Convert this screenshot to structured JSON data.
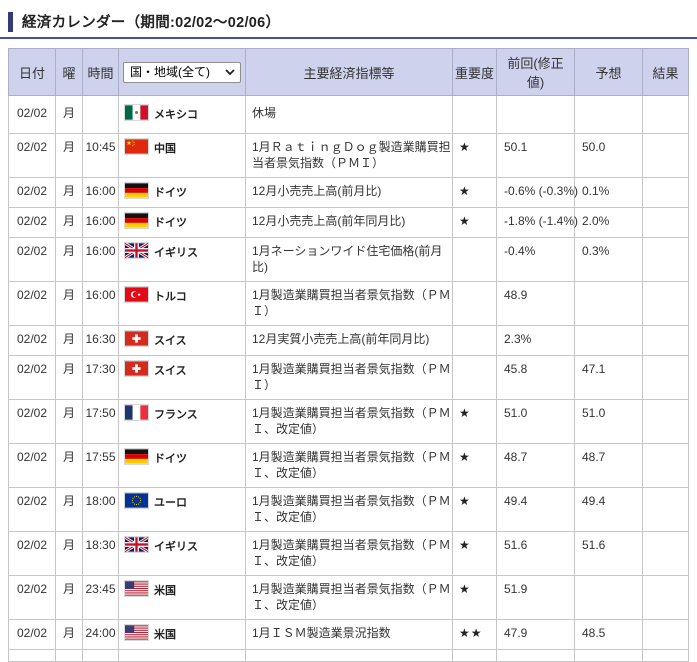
{
  "page": {
    "title": "経済カレンダー（期間:02/02～02/06）"
  },
  "colors": {
    "accent_bar": "#333c78",
    "title_underline": "#45519e",
    "header_bg": "#ced2ec"
  },
  "table": {
    "region_filter": {
      "selected": "国・地域(全て)"
    },
    "headers": {
      "date": "日付",
      "day": "曜",
      "time": "時間",
      "indicator": "主要経済指標等",
      "importance": "重要度",
      "previous": "前回(修正値)",
      "forecast": "予想",
      "result": "結果"
    },
    "rows": [
      {
        "date": "02/02",
        "day": "月",
        "time": "",
        "country": "メキシコ",
        "flag": "mexico",
        "indicator": "休場",
        "importance": "",
        "previous": "",
        "forecast": "",
        "result": ""
      },
      {
        "date": "02/02",
        "day": "月",
        "time": "10:45",
        "country": "中国",
        "flag": "china",
        "indicator": "1月ＲａｔｉｎｇＤｏｇ製造業購買担\n当者景気指数（ＰＭＩ）",
        "importance": "★",
        "previous": "50.1",
        "forecast": "50.0",
        "result": ""
      },
      {
        "date": "02/02",
        "day": "月",
        "time": "16:00",
        "country": "ドイツ",
        "flag": "germany",
        "indicator": "12月小売売上高(前月比)",
        "importance": "★",
        "previous": "-0.6% (-0.3%)",
        "forecast": "0.1%",
        "result": ""
      },
      {
        "date": "02/02",
        "day": "月",
        "time": "16:00",
        "country": "ドイツ",
        "flag": "germany",
        "indicator": "12月小売売上高(前年同月比)",
        "importance": "★",
        "previous": "-1.8% (-1.4%)",
        "forecast": "2.0%",
        "result": ""
      },
      {
        "date": "02/02",
        "day": "月",
        "time": "16:00",
        "country": "イギリス",
        "flag": "uk",
        "indicator": "1月ネーションワイド住宅価格(前月\n比)",
        "importance": "",
        "previous": "-0.4%",
        "forecast": "0.3%",
        "result": ""
      },
      {
        "date": "02/02",
        "day": "月",
        "time": "16:00",
        "country": "トルコ",
        "flag": "turkey",
        "indicator": "1月製造業購買担当者景気指数（ＰＭ\nＩ）",
        "importance": "",
        "previous": "48.9",
        "forecast": "",
        "result": ""
      },
      {
        "date": "02/02",
        "day": "月",
        "time": "16:30",
        "country": "スイス",
        "flag": "switzerland",
        "indicator": "12月実質小売売上高(前年同月比)",
        "importance": "",
        "previous": "2.3%",
        "forecast": "",
        "result": ""
      },
      {
        "date": "02/02",
        "day": "月",
        "time": "17:30",
        "country": "スイス",
        "flag": "switzerland",
        "indicator": "1月製造業購買担当者景気指数（ＰＭ\nＩ）",
        "importance": "",
        "previous": "45.8",
        "forecast": "47.1",
        "result": ""
      },
      {
        "date": "02/02",
        "day": "月",
        "time": "17:50",
        "country": "フランス",
        "flag": "france",
        "indicator": "1月製造業購買担当者景気指数（ＰＭ\nＩ、改定値）",
        "importance": "★",
        "previous": "51.0",
        "forecast": "51.0",
        "result": ""
      },
      {
        "date": "02/02",
        "day": "月",
        "time": "17:55",
        "country": "ドイツ",
        "flag": "germany",
        "indicator": "1月製造業購買担当者景気指数（ＰＭ\nＩ、改定値）",
        "importance": "★",
        "previous": "48.7",
        "forecast": "48.7",
        "result": ""
      },
      {
        "date": "02/02",
        "day": "月",
        "time": "18:00",
        "country": "ユーロ",
        "flag": "eu",
        "indicator": "1月製造業購買担当者景気指数（ＰＭ\nＩ、改定値）",
        "importance": "★",
        "previous": "49.4",
        "forecast": "49.4",
        "result": ""
      },
      {
        "date": "02/02",
        "day": "月",
        "time": "18:30",
        "country": "イギリス",
        "flag": "uk",
        "indicator": "1月製造業購買担当者景気指数（ＰＭ\nＩ、改定値）",
        "importance": "★",
        "previous": "51.6",
        "forecast": "51.6",
        "result": ""
      },
      {
        "date": "02/02",
        "day": "月",
        "time": "23:45",
        "country": "米国",
        "flag": "usa",
        "indicator": "1月製造業購買担当者景気指数（ＰＭ\nＩ、改定値）",
        "importance": "★",
        "previous": "51.9",
        "forecast": "",
        "result": ""
      },
      {
        "date": "02/02",
        "day": "月",
        "time": "24:00",
        "country": "米国",
        "flag": "usa",
        "indicator": "1月ＩＳＭ製造業景況指数",
        "importance": "★★",
        "previous": "47.9",
        "forecast": "48.5",
        "result": ""
      },
      {
        "date": "",
        "day": "",
        "time": "",
        "country": "",
        "flag": "",
        "indicator": "",
        "importance": "",
        "previous": "",
        "forecast": "",
        "result": ""
      }
    ]
  }
}
